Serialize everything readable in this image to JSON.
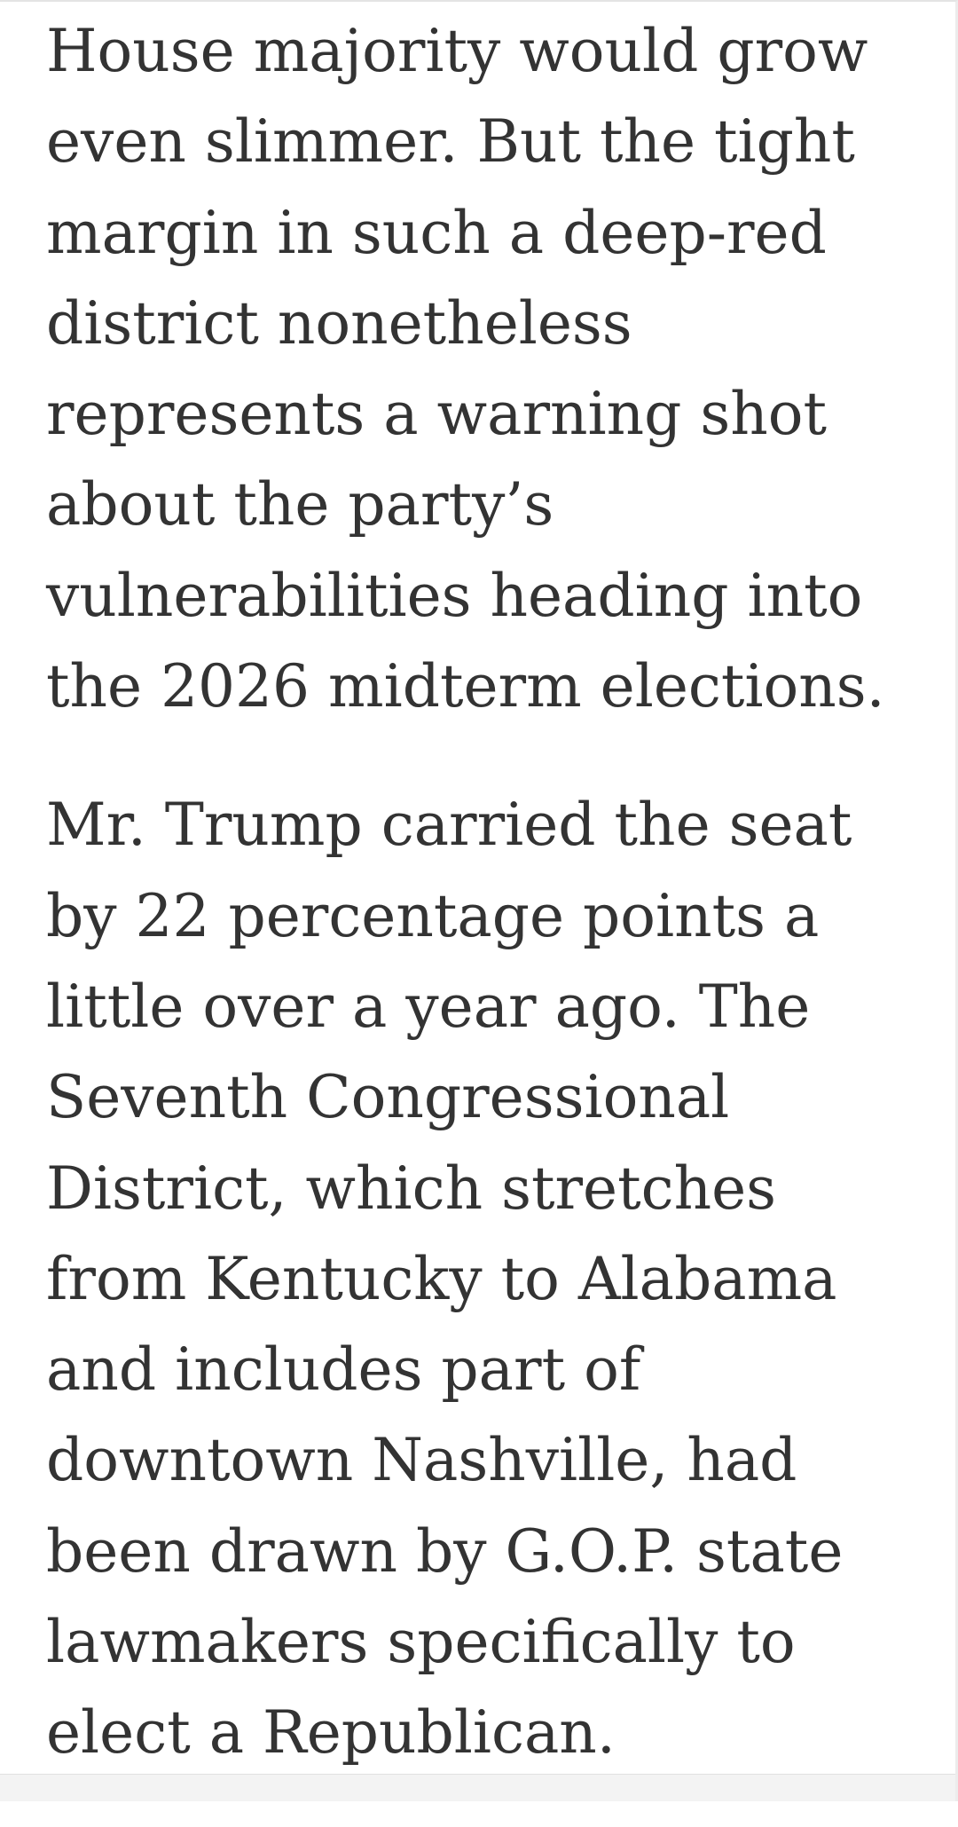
{
  "article": {
    "paragraphs": [
      {
        "lines": [
          "House majority would grow",
          "even slimmer. But the tight",
          "margin in such a deep-red",
          "district nonetheless",
          "represents a warning shot",
          "about the party’s",
          "vulnerabilities heading into",
          "the 2026 midterm elections."
        ]
      },
      {
        "lines": [
          "Mr. Trump carried the seat",
          "by 22 percentage points a",
          "little over a year ago. The",
          "Seventh Congressional",
          "District, which stretches",
          "from Kentucky to Alabama",
          "and includes part of",
          "downtown Nashville, had",
          "been drawn by G.O.P. state",
          "lawmakers specifically to",
          "elect a Republican."
        ]
      }
    ]
  }
}
